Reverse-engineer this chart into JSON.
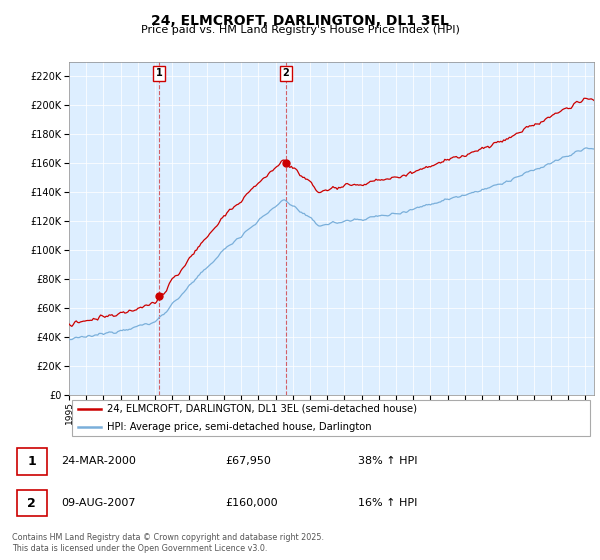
{
  "title": "24, ELMCROFT, DARLINGTON, DL1 3EL",
  "subtitle": "Price paid vs. HM Land Registry's House Price Index (HPI)",
  "legend_line1": "24, ELMCROFT, DARLINGTON, DL1 3EL (semi-detached house)",
  "legend_line2": "HPI: Average price, semi-detached house, Darlington",
  "annotation1_date": "24-MAR-2000",
  "annotation1_price": "£67,950",
  "annotation1_hpi": "38% ↑ HPI",
  "annotation2_date": "09-AUG-2007",
  "annotation2_price": "£160,000",
  "annotation2_hpi": "16% ↑ HPI",
  "footer": "Contains HM Land Registry data © Crown copyright and database right 2025.\nThis data is licensed under the Open Government Licence v3.0.",
  "red_color": "#cc0000",
  "blue_color": "#7aafda",
  "bg_color": "#ddeeff",
  "ylim_min": 0,
  "ylim_max": 230000,
  "sale1_year": 2000.23,
  "sale1_price": 67950,
  "sale2_year": 2007.61,
  "sale2_price": 160000,
  "xmin": 1995,
  "xmax": 2025.5
}
